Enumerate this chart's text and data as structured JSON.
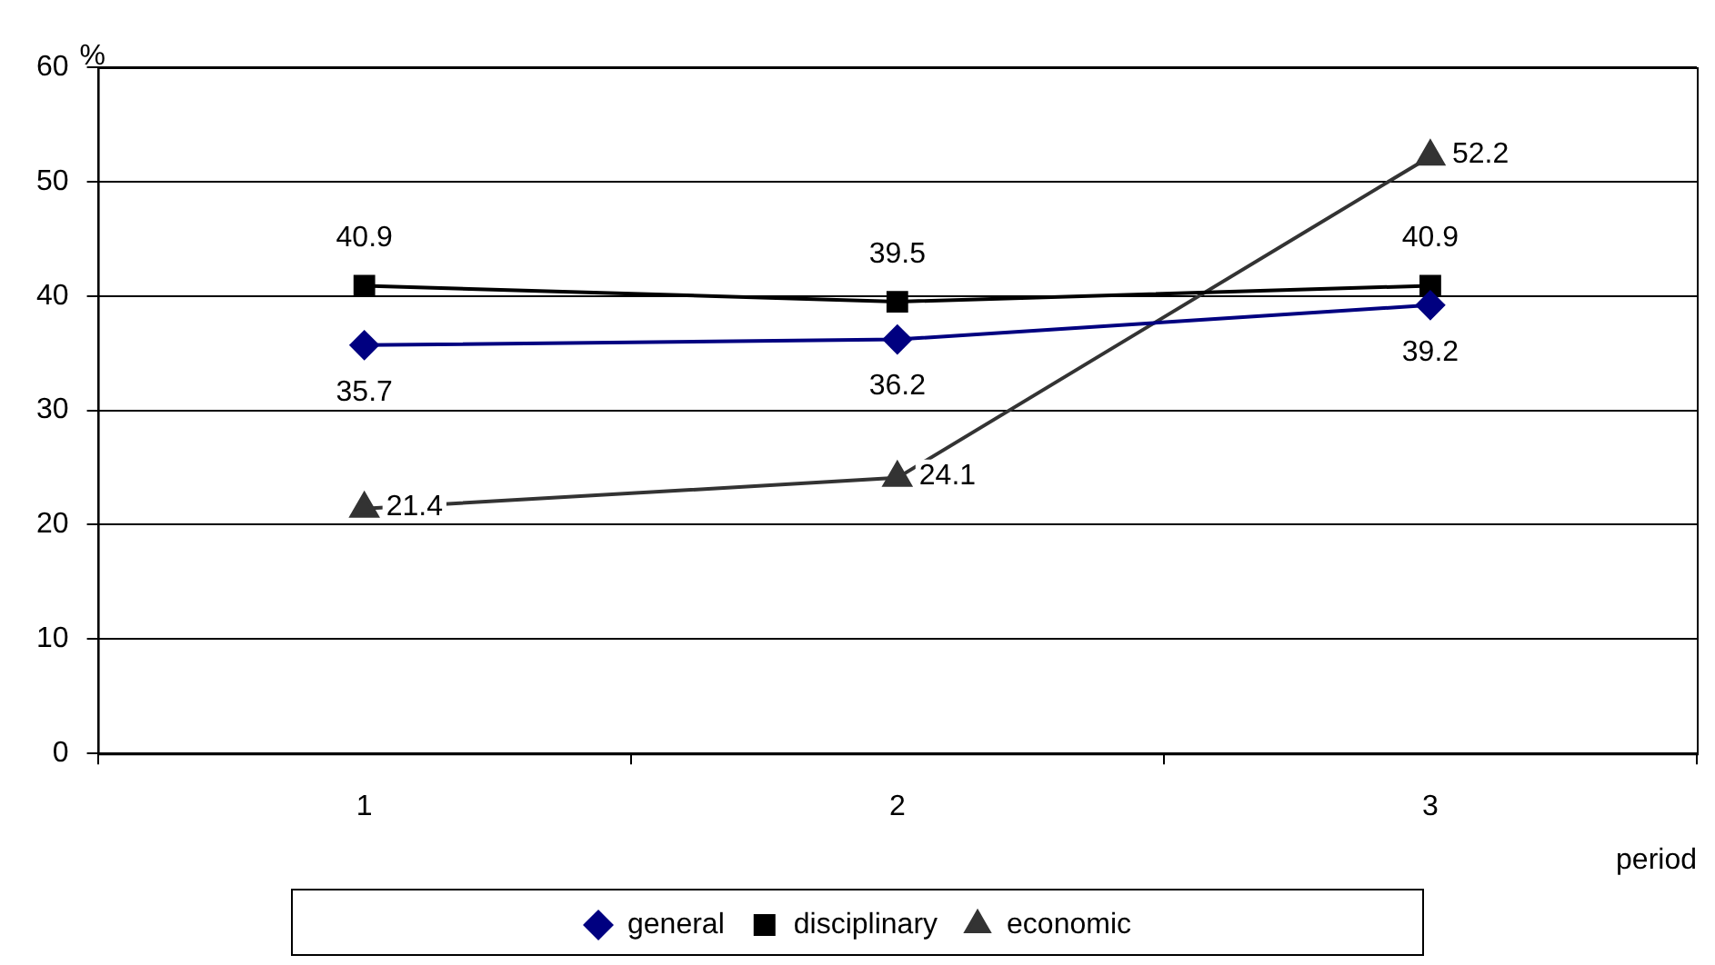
{
  "chart_data": {
    "type": "line",
    "xlabel": "period",
    "ylabel": "%",
    "categories": [
      "1",
      "2",
      "3"
    ],
    "series": [
      {
        "name": "general",
        "color": "#000080",
        "marker": "diamond",
        "values": [
          35.7,
          36.2,
          39.2
        ]
      },
      {
        "name": "disciplinary",
        "color": "#000000",
        "marker": "square",
        "values": [
          40.9,
          39.5,
          40.9
        ]
      },
      {
        "name": "economic",
        "color": "#333333",
        "marker": "triangle",
        "values": [
          21.4,
          24.1,
          52.2
        ]
      }
    ],
    "ylim": [
      0,
      60
    ],
    "yticks": [
      0,
      10,
      20,
      30,
      40,
      50,
      60
    ],
    "grid": "y",
    "legend": "bottom",
    "data_labels": true,
    "line_style": "solid"
  }
}
